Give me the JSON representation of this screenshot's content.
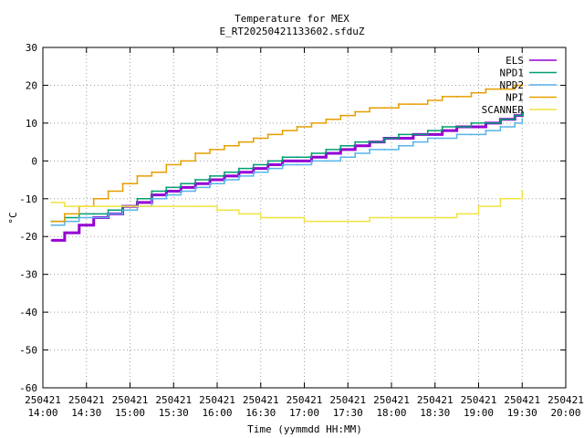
{
  "chart_data": {
    "type": "line",
    "title": "Temperature for MEX",
    "subtitle": "E_RT20250421133602.sfduZ",
    "xlabel": "Time (yymmdd HH:MM)",
    "ylabel": "°C",
    "ylim": [
      -60,
      30
    ],
    "yticks": [
      -60,
      -50,
      -40,
      -30,
      -20,
      -10,
      0,
      10,
      20,
      30
    ],
    "xlim": [
      "2025-04-21 14:00",
      "2025-04-21 20:00"
    ],
    "xticks": [
      {
        "top": "250421",
        "bottom": "14:00"
      },
      {
        "top": "250421",
        "bottom": "14:30"
      },
      {
        "top": "250421",
        "bottom": "15:00"
      },
      {
        "top": "250421",
        "bottom": "15:30"
      },
      {
        "top": "250421",
        "bottom": "16:00"
      },
      {
        "top": "250421",
        "bottom": "16:30"
      },
      {
        "top": "250421",
        "bottom": "17:00"
      },
      {
        "top": "250421",
        "bottom": "17:30"
      },
      {
        "top": "250421",
        "bottom": "18:00"
      },
      {
        "top": "250421",
        "bottom": "18:30"
      },
      {
        "top": "250421",
        "bottom": "19:00"
      },
      {
        "top": "250421",
        "bottom": "19:30"
      },
      {
        "top": "250421",
        "bottom": "20:00"
      }
    ],
    "grid": true,
    "legend_position": "top-right",
    "series": [
      {
        "name": "ELS",
        "color": "#9400d3",
        "points": [
          [
            "14:06",
            -21
          ],
          [
            "14:15",
            -19
          ],
          [
            "14:25",
            -17
          ],
          [
            "14:35",
            -15
          ],
          [
            "14:45",
            -14
          ],
          [
            "14:55",
            -12
          ],
          [
            "15:05",
            -11
          ],
          [
            "15:15",
            -9
          ],
          [
            "15:25",
            -8
          ],
          [
            "15:35",
            -7
          ],
          [
            "15:45",
            -6
          ],
          [
            "15:55",
            -5
          ],
          [
            "16:05",
            -4
          ],
          [
            "16:15",
            -3
          ],
          [
            "16:25",
            -2
          ],
          [
            "16:35",
            -1
          ],
          [
            "16:45",
            0
          ],
          [
            "16:55",
            0
          ],
          [
            "17:05",
            1
          ],
          [
            "17:15",
            2
          ],
          [
            "17:25",
            3
          ],
          [
            "17:35",
            4
          ],
          [
            "17:45",
            5
          ],
          [
            "17:55",
            6
          ],
          [
            "18:05",
            6
          ],
          [
            "18:15",
            7
          ],
          [
            "18:25",
            7
          ],
          [
            "18:35",
            8
          ],
          [
            "18:45",
            9
          ],
          [
            "18:55",
            9
          ],
          [
            "19:05",
            10
          ],
          [
            "19:15",
            11
          ],
          [
            "19:25",
            12
          ],
          [
            "19:30",
            13
          ]
        ]
      },
      {
        "name": "NPD1",
        "color": "#009e73",
        "points": [
          [
            "14:06",
            -16
          ],
          [
            "14:15",
            -15
          ],
          [
            "14:25",
            -14
          ],
          [
            "14:35",
            -14
          ],
          [
            "14:45",
            -13
          ],
          [
            "14:55",
            -12
          ],
          [
            "15:05",
            -10
          ],
          [
            "15:15",
            -8
          ],
          [
            "15:25",
            -7
          ],
          [
            "15:35",
            -6
          ],
          [
            "15:45",
            -5
          ],
          [
            "15:55",
            -4
          ],
          [
            "16:05",
            -3
          ],
          [
            "16:15",
            -2
          ],
          [
            "16:25",
            -1
          ],
          [
            "16:35",
            0
          ],
          [
            "16:45",
            1
          ],
          [
            "16:55",
            1
          ],
          [
            "17:05",
            2
          ],
          [
            "17:15",
            3
          ],
          [
            "17:25",
            4
          ],
          [
            "17:35",
            5
          ],
          [
            "17:45",
            5
          ],
          [
            "17:55",
            6
          ],
          [
            "18:05",
            7
          ],
          [
            "18:15",
            7
          ],
          [
            "18:25",
            8
          ],
          [
            "18:35",
            9
          ],
          [
            "18:45",
            9
          ],
          [
            "18:55",
            10
          ],
          [
            "19:05",
            10
          ],
          [
            "19:15",
            11
          ],
          [
            "19:25",
            12
          ],
          [
            "19:30",
            13
          ]
        ]
      },
      {
        "name": "NPD2",
        "color": "#56b4e9",
        "points": [
          [
            "14:06",
            -17
          ],
          [
            "14:15",
            -16
          ],
          [
            "14:25",
            -15
          ],
          [
            "14:35",
            -15
          ],
          [
            "14:45",
            -14
          ],
          [
            "14:55",
            -13
          ],
          [
            "15:05",
            -12
          ],
          [
            "15:15",
            -10
          ],
          [
            "15:25",
            -9
          ],
          [
            "15:35",
            -8
          ],
          [
            "15:45",
            -7
          ],
          [
            "15:55",
            -6
          ],
          [
            "16:05",
            -5
          ],
          [
            "16:15",
            -4
          ],
          [
            "16:25",
            -3
          ],
          [
            "16:35",
            -2
          ],
          [
            "16:45",
            -1
          ],
          [
            "16:55",
            -1
          ],
          [
            "17:05",
            0
          ],
          [
            "17:15",
            0
          ],
          [
            "17:25",
            1
          ],
          [
            "17:35",
            2
          ],
          [
            "17:45",
            3
          ],
          [
            "17:55",
            3
          ],
          [
            "18:05",
            4
          ],
          [
            "18:15",
            5
          ],
          [
            "18:25",
            6
          ],
          [
            "18:35",
            6
          ],
          [
            "18:45",
            7
          ],
          [
            "18:55",
            7
          ],
          [
            "19:05",
            8
          ],
          [
            "19:15",
            9
          ],
          [
            "19:25",
            10
          ],
          [
            "19:30",
            11
          ]
        ]
      },
      {
        "name": "NPI",
        "color": "#e69f00",
        "points": [
          [
            "14:06",
            -16
          ],
          [
            "14:15",
            -14
          ],
          [
            "14:25",
            -12
          ],
          [
            "14:35",
            -10
          ],
          [
            "14:45",
            -8
          ],
          [
            "14:55",
            -6
          ],
          [
            "15:05",
            -4
          ],
          [
            "15:15",
            -3
          ],
          [
            "15:25",
            -1
          ],
          [
            "15:35",
            0
          ],
          [
            "15:45",
            2
          ],
          [
            "15:55",
            3
          ],
          [
            "16:05",
            4
          ],
          [
            "16:15",
            5
          ],
          [
            "16:25",
            6
          ],
          [
            "16:35",
            7
          ],
          [
            "16:45",
            8
          ],
          [
            "16:55",
            9
          ],
          [
            "17:05",
            10
          ],
          [
            "17:15",
            11
          ],
          [
            "17:25",
            12
          ],
          [
            "17:35",
            13
          ],
          [
            "17:45",
            14
          ],
          [
            "17:55",
            14
          ],
          [
            "18:05",
            15
          ],
          [
            "18:15",
            15
          ],
          [
            "18:25",
            16
          ],
          [
            "18:35",
            17
          ],
          [
            "18:45",
            17
          ],
          [
            "18:55",
            18
          ],
          [
            "19:05",
            19
          ],
          [
            "19:15",
            19
          ],
          [
            "19:25",
            20
          ],
          [
            "19:30",
            20
          ]
        ]
      },
      {
        "name": "SCANNER",
        "color": "#f0e442",
        "points": [
          [
            "14:06",
            -11
          ],
          [
            "14:15",
            -12
          ],
          [
            "14:30",
            -12
          ],
          [
            "14:45",
            -12
          ],
          [
            "15:00",
            -12
          ],
          [
            "15:15",
            -12
          ],
          [
            "15:30",
            -12
          ],
          [
            "15:45",
            -12
          ],
          [
            "16:00",
            -13
          ],
          [
            "16:15",
            -14
          ],
          [
            "16:30",
            -15
          ],
          [
            "16:45",
            -15
          ],
          [
            "17:00",
            -16
          ],
          [
            "17:15",
            -16
          ],
          [
            "17:30",
            -16
          ],
          [
            "17:45",
            -15
          ],
          [
            "18:00",
            -15
          ],
          [
            "18:15",
            -15
          ],
          [
            "18:30",
            -15
          ],
          [
            "18:45",
            -14
          ],
          [
            "19:00",
            -12
          ],
          [
            "19:15",
            -10
          ],
          [
            "19:30",
            -8
          ]
        ]
      }
    ]
  }
}
